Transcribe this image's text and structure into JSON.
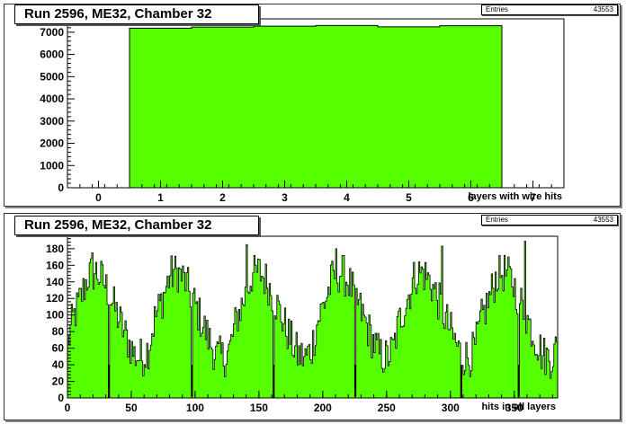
{
  "charts": [
    {
      "title": "Run 2596, ME32, Chamber 32",
      "stats": {
        "label": "Entries",
        "value": "43553"
      },
      "xlabel": "layers with wire hits",
      "fill_color": "#55ff00"
    },
    {
      "title": "Run 2596, ME32, Chamber 32",
      "stats": {
        "label": "Entries",
        "value": "43553"
      },
      "xlabel": "hits in all layers",
      "fill_color": "#55ff00"
    }
  ],
  "chart_data": [
    {
      "type": "bar",
      "title": "Run 2596, ME32, Chamber 32",
      "xlabel": "layers with wire hits",
      "ylabel": "",
      "xlim": [
        -0.5,
        7.5
      ],
      "ylim": [
        0,
        7600
      ],
      "x_ticks": [
        0,
        1,
        2,
        3,
        4,
        5,
        6,
        7
      ],
      "y_ticks": [
        0,
        1000,
        2000,
        3000,
        4000,
        5000,
        6000,
        7000
      ],
      "bins": [
        {
          "lo": 0.5,
          "hi": 1.5,
          "value": 7180
        },
        {
          "lo": 1.5,
          "hi": 2.5,
          "value": 7230
        },
        {
          "lo": 2.5,
          "hi": 3.5,
          "value": 7270
        },
        {
          "lo": 3.5,
          "hi": 4.5,
          "value": 7300
        },
        {
          "lo": 4.5,
          "hi": 5.5,
          "value": 7240
        },
        {
          "lo": 5.5,
          "hi": 6.5,
          "value": 7290
        }
      ],
      "grid": false,
      "legend": "top-right stats box"
    },
    {
      "type": "bar",
      "title": "Run 2596, ME32, Chamber 32",
      "xlabel": "hits in all layers",
      "ylabel": "",
      "xlim": [
        0,
        384
      ],
      "ylim": [
        0,
        195
      ],
      "x_ticks": [
        0,
        50,
        100,
        150,
        200,
        250,
        300,
        350
      ],
      "y_ticks": [
        0,
        20,
        40,
        60,
        80,
        100,
        120,
        140,
        160,
        180
      ],
      "bin_width": 1,
      "cycle_length": 64,
      "cycle_envelope": [
        {
          "x": 0,
          "y": 68
        },
        {
          "x": 4,
          "y": 95
        },
        {
          "x": 10,
          "y": 120
        },
        {
          "x": 16,
          "y": 148
        },
        {
          "x": 22,
          "y": 152
        },
        {
          "x": 28,
          "y": 140
        },
        {
          "x": 34,
          "y": 118
        },
        {
          "x": 40,
          "y": 95
        },
        {
          "x": 46,
          "y": 72
        },
        {
          "x": 52,
          "y": 52
        },
        {
          "x": 58,
          "y": 48
        },
        {
          "x": 63,
          "y": 60
        }
      ],
      "dips": [
        {
          "x": 32,
          "y": 1
        },
        {
          "x": 97,
          "y": 2
        },
        {
          "x": 161,
          "y": 1
        },
        {
          "x": 225,
          "y": 2
        },
        {
          "x": 308,
          "y": 1
        },
        {
          "x": 353,
          "y": 2
        }
      ],
      "peaks": [
        {
          "x": 19,
          "y": 175
        },
        {
          "x": 83,
          "y": 155
        },
        {
          "x": 140,
          "y": 185
        },
        {
          "x": 210,
          "y": 180
        },
        {
          "x": 293,
          "y": 183
        },
        {
          "x": 358,
          "y": 189
        }
      ],
      "grid": false,
      "legend": "top-right stats box"
    }
  ]
}
